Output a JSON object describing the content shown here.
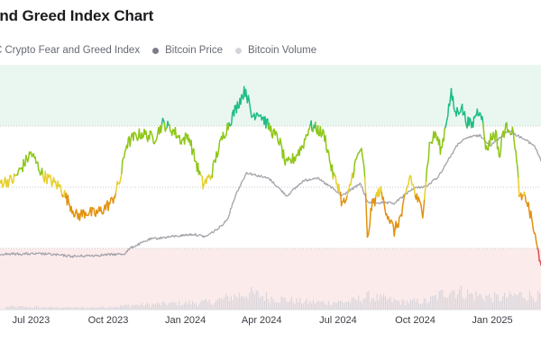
{
  "chart_data": {
    "type": "line",
    "title": "and Greed Index Chart",
    "legend": [
      {
        "name": "C Crypto Fear and Greed Index",
        "color": "#d6d3db"
      },
      {
        "name": "Bitcoin Price",
        "color": "#7c7b8a"
      },
      {
        "name": "Bitcoin Volume",
        "color": "#d5d4da"
      }
    ],
    "legend_placement": "top-left",
    "x_ticks": [
      "Jul 2023",
      "Oct 2023",
      "Jan 2024",
      "Apr 2024",
      "Jul 2024",
      "Oct 2024",
      "Jan 2025"
    ],
    "x_range": [
      "2023-05-25",
      "2025-02-28"
    ],
    "y_range": [
      0,
      100
    ],
    "bands": [
      {
        "name": "extreme greed",
        "from": 75,
        "to": 100,
        "color": "#eaf7f1"
      },
      {
        "name": "extreme fear",
        "from": 0,
        "to": 25,
        "color": "#fcebeb"
      }
    ],
    "gridlines_y": [
      25,
      50,
      75
    ],
    "series": [
      {
        "name": "Crypto Fear and Greed Index",
        "unit": "index (0-100)",
        "color_scale": [
          {
            "from": 0,
            "to": 25,
            "color": "#e04a4f"
          },
          {
            "from": 25,
            "to": 47,
            "color": "#e2920f"
          },
          {
            "from": 47,
            "to": 55,
            "color": "#e7cf2d"
          },
          {
            "from": 55,
            "to": 75,
            "color": "#8ec617"
          },
          {
            "from": 75,
            "to": 100,
            "color": "#1ebd86"
          }
        ],
        "points": [
          [
            "2023-05-25",
            52
          ],
          [
            "2023-06-10",
            53
          ],
          [
            "2023-06-20",
            58
          ],
          [
            "2023-07-01",
            64
          ],
          [
            "2023-07-15",
            55
          ],
          [
            "2023-08-05",
            50
          ],
          [
            "2023-08-18",
            42
          ],
          [
            "2023-08-25",
            38
          ],
          [
            "2023-09-05",
            40
          ],
          [
            "2023-09-15",
            39
          ],
          [
            "2023-09-25",
            41
          ],
          [
            "2023-10-05",
            44
          ],
          [
            "2023-10-10",
            48
          ],
          [
            "2023-10-16",
            54
          ],
          [
            "2023-10-22",
            67
          ],
          [
            "2023-10-30",
            70
          ],
          [
            "2023-11-10",
            72
          ],
          [
            "2023-11-25",
            70
          ],
          [
            "2023-12-05",
            76
          ],
          [
            "2023-12-18",
            73
          ],
          [
            "2023-12-28",
            69
          ],
          [
            "2024-01-05",
            71
          ],
          [
            "2024-01-12",
            62
          ],
          [
            "2024-01-22",
            51
          ],
          [
            "2024-02-01",
            55
          ],
          [
            "2024-02-08",
            64
          ],
          [
            "2024-02-15",
            71
          ],
          [
            "2024-02-22",
            76
          ],
          [
            "2024-03-01",
            82
          ],
          [
            "2024-03-08",
            87
          ],
          [
            "2024-03-13",
            90
          ],
          [
            "2024-03-20",
            79
          ],
          [
            "2024-03-28",
            81
          ],
          [
            "2024-04-05",
            77
          ],
          [
            "2024-04-15",
            72
          ],
          [
            "2024-04-22",
            69
          ],
          [
            "2024-04-30",
            59
          ],
          [
            "2024-05-10",
            62
          ],
          [
            "2024-05-20",
            67
          ],
          [
            "2024-05-28",
            75
          ],
          [
            "2024-06-05",
            74
          ],
          [
            "2024-06-15",
            71
          ],
          [
            "2024-06-25",
            55
          ],
          [
            "2024-07-02",
            50
          ],
          [
            "2024-07-06",
            43
          ],
          [
            "2024-07-12",
            45
          ],
          [
            "2024-07-20",
            58
          ],
          [
            "2024-07-28",
            66
          ],
          [
            "2024-08-02",
            55
          ],
          [
            "2024-08-05",
            28
          ],
          [
            "2024-08-10",
            42
          ],
          [
            "2024-08-20",
            49
          ],
          [
            "2024-08-28",
            40
          ],
          [
            "2024-09-06",
            32
          ],
          [
            "2024-09-15",
            39
          ],
          [
            "2024-09-25",
            55
          ],
          [
            "2024-10-01",
            47
          ],
          [
            "2024-10-10",
            40
          ],
          [
            "2024-10-18",
            67
          ],
          [
            "2024-10-25",
            72
          ],
          [
            "2024-11-01",
            65
          ],
          [
            "2024-11-08",
            79
          ],
          [
            "2024-11-13",
            88
          ],
          [
            "2024-11-18",
            80
          ],
          [
            "2024-11-25",
            83
          ],
          [
            "2024-12-01",
            77
          ],
          [
            "2024-12-08",
            75
          ],
          [
            "2024-12-12",
            80
          ],
          [
            "2024-12-18",
            82
          ],
          [
            "2024-12-25",
            65
          ],
          [
            "2024-12-30",
            70
          ],
          [
            "2025-01-05",
            72
          ],
          [
            "2025-01-10",
            62
          ],
          [
            "2025-01-13",
            72
          ],
          [
            "2025-01-20",
            75
          ],
          [
            "2025-01-27",
            71
          ],
          [
            "2025-02-03",
            45
          ],
          [
            "2025-02-10",
            46
          ],
          [
            "2025-02-18",
            35
          ],
          [
            "2025-02-24",
            24
          ],
          [
            "2025-02-28",
            20
          ]
        ]
      },
      {
        "name": "Bitcoin Price",
        "color": "#a3a3aa",
        "points": [
          [
            "2023-05-25",
            0.05
          ],
          [
            "2023-06-20",
            0.05
          ],
          [
            "2023-07-20",
            0.05
          ],
          [
            "2023-08-20",
            0.03
          ],
          [
            "2023-09-20",
            0.04
          ],
          [
            "2023-10-20",
            0.05
          ],
          [
            "2023-10-28",
            0.1
          ],
          [
            "2023-11-20",
            0.17
          ],
          [
            "2023-12-15",
            0.19
          ],
          [
            "2024-01-10",
            0.21
          ],
          [
            "2024-01-25",
            0.19
          ],
          [
            "2024-02-10",
            0.26
          ],
          [
            "2024-02-20",
            0.33
          ],
          [
            "2024-03-01",
            0.53
          ],
          [
            "2024-03-14",
            0.71
          ],
          [
            "2024-04-10",
            0.66
          ],
          [
            "2024-05-01",
            0.52
          ],
          [
            "2024-05-20",
            0.64
          ],
          [
            "2024-06-05",
            0.67
          ],
          [
            "2024-06-25",
            0.58
          ],
          [
            "2024-07-05",
            0.52
          ],
          [
            "2024-07-28",
            0.62
          ],
          [
            "2024-08-05",
            0.47
          ],
          [
            "2024-09-06",
            0.46
          ],
          [
            "2024-09-28",
            0.58
          ],
          [
            "2024-10-15",
            0.6
          ],
          [
            "2024-10-29",
            0.68
          ],
          [
            "2024-11-10",
            0.82
          ],
          [
            "2024-11-22",
            0.95
          ],
          [
            "2024-12-05",
            1.0
          ],
          [
            "2024-12-17",
            1.01
          ],
          [
            "2024-12-30",
            0.93
          ],
          [
            "2025-01-20",
            1.05
          ],
          [
            "2025-02-03",
            1.0
          ],
          [
            "2025-02-20",
            0.93
          ],
          [
            "2025-02-28",
            0.81
          ]
        ]
      },
      {
        "name": "Bitcoin Volume",
        "color": "#d5d4da",
        "points": [
          [
            "2023-06-01",
            0.12
          ],
          [
            "2023-07-01",
            0.1
          ],
          [
            "2023-08-01",
            0.09
          ],
          [
            "2023-09-01",
            0.08
          ],
          [
            "2023-10-01",
            0.11
          ],
          [
            "2023-11-01",
            0.18
          ],
          [
            "2023-12-01",
            0.22
          ],
          [
            "2024-01-01",
            0.26
          ],
          [
            "2024-02-01",
            0.3
          ],
          [
            "2024-03-01",
            0.55
          ],
          [
            "2024-03-15",
            0.65
          ],
          [
            "2024-04-15",
            0.45
          ],
          [
            "2024-05-15",
            0.32
          ],
          [
            "2024-06-15",
            0.28
          ],
          [
            "2024-07-15",
            0.32
          ],
          [
            "2024-08-05",
            0.52
          ],
          [
            "2024-09-15",
            0.3
          ],
          [
            "2024-10-15",
            0.33
          ],
          [
            "2024-11-12",
            0.8
          ],
          [
            "2024-12-05",
            0.6
          ],
          [
            "2025-01-10",
            0.45
          ],
          [
            "2025-02-03",
            0.6
          ],
          [
            "2025-02-28",
            0.5
          ]
        ]
      }
    ]
  }
}
